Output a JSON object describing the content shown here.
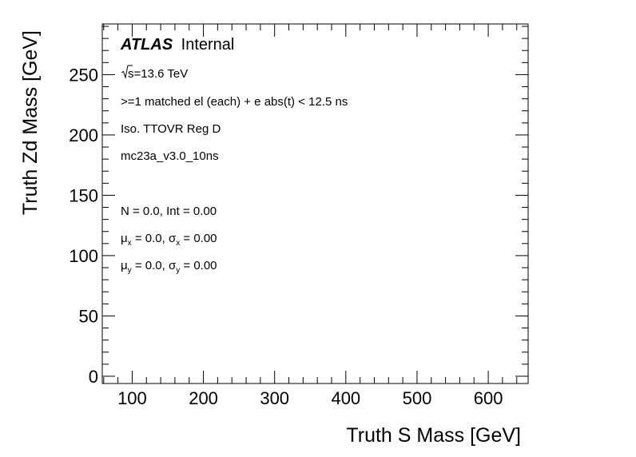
{
  "chart_data": {
    "type": "heatmap",
    "xlabel": "Truth S Mass [GeV]",
    "ylabel": "Truth Zd Mass [GeV]",
    "xlim": [
      58,
      656
    ],
    "ylim": [
      -6,
      292
    ],
    "x_major_ticks": [
      100,
      200,
      300,
      400,
      500,
      600
    ],
    "x_minor_step": 20,
    "y_major_ticks": [
      0,
      50,
      100,
      150,
      200,
      250
    ],
    "y_minor_step": 10,
    "grid": false,
    "values": [],
    "experiment_label": "ATLAS",
    "status_label": "Internal",
    "energy_label": "s=13.6 TeV",
    "annotations": [
      ">=1 matched el (each) + e abs(t) < 12.5 ns",
      "Iso. TTOVR Reg D",
      "mc23a_v3.0_10ns"
    ],
    "stats": {
      "n_line": "N = 0.0, Int  = 0.00",
      "mu_x": "0.0",
      "sigma_x": "0.00",
      "mu_y": "0.0",
      "sigma_y": "0.00"
    }
  }
}
